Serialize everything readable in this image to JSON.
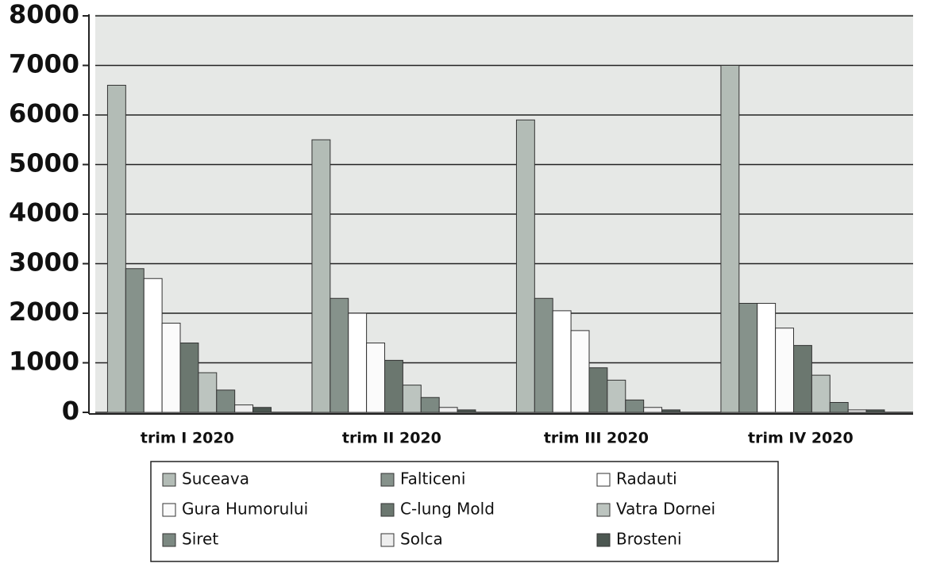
{
  "chart_data": {
    "type": "bar",
    "categories": [
      "trim I 2020",
      "trim II 2020",
      "trim III 2020",
      "trim IV 2020"
    ],
    "series": [
      {
        "name": "Suceava",
        "color": "#b3bcb6",
        "values": [
          6600,
          5500,
          5900,
          7000
        ]
      },
      {
        "name": "Falticeni",
        "color": "#86928b",
        "values": [
          2900,
          2300,
          2300,
          2200
        ]
      },
      {
        "name": "Radauti",
        "color": "#ffffff",
        "values": [
          2700,
          2000,
          2050,
          2200
        ]
      },
      {
        "name": "Gura Humorului",
        "color": "#fbfbfb",
        "values": [
          1800,
          1400,
          1650,
          1700
        ]
      },
      {
        "name": "C-lung Mold",
        "color": "#6b776f",
        "values": [
          1400,
          1050,
          900,
          1350
        ]
      },
      {
        "name": "Vatra Dornei",
        "color": "#bcc4bf",
        "values": [
          800,
          550,
          650,
          750
        ]
      },
      {
        "name": "Siret",
        "color": "#7c8982",
        "values": [
          450,
          300,
          250,
          200
        ]
      },
      {
        "name": "Solca",
        "color": "#eeeeee",
        "values": [
          150,
          100,
          100,
          50
        ]
      },
      {
        "name": "Brosteni",
        "color": "#4c5751",
        "values": [
          100,
          50,
          50,
          50
        ]
      }
    ],
    "ylim": [
      0,
      8000
    ],
    "yticks": [
      0,
      1000,
      2000,
      3000,
      4000,
      5000,
      6000,
      7000,
      8000
    ],
    "grid": true
  }
}
